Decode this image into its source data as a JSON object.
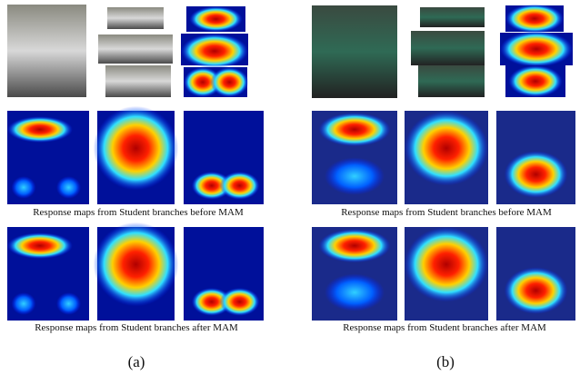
{
  "panels": [
    {
      "caption_before": "Response maps from Student branches before MAM",
      "caption_after": "Response maps from Student branches after MAM",
      "label": "(a)"
    },
    {
      "caption_before": "Response maps from Student branches before MAM",
      "caption_after": "Response maps from Student branches after MAM",
      "label": "(b)"
    }
  ]
}
